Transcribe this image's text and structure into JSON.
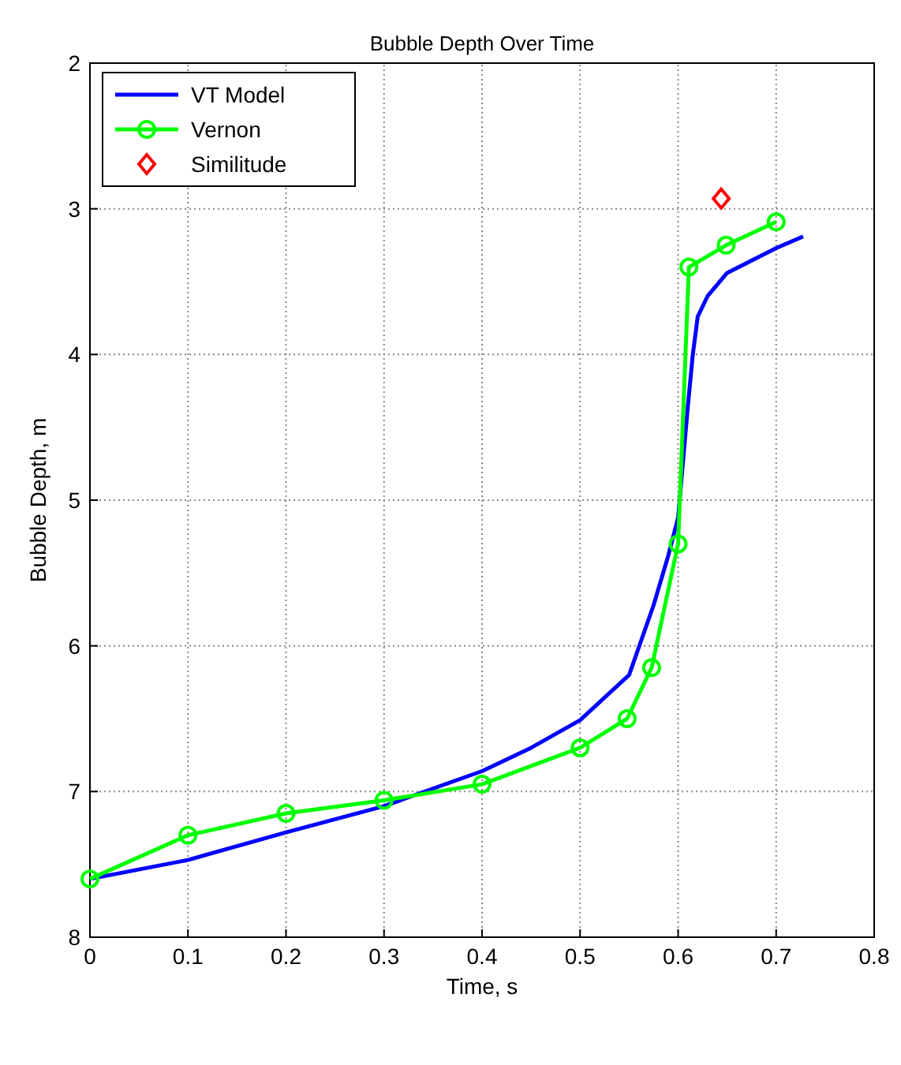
{
  "chart_data": {
    "type": "line",
    "title": "Bubble Depth Over Time",
    "xlabel": "Time, s",
    "ylabel": "Bubble Depth, m",
    "xlim": [
      0,
      0.8
    ],
    "ylim": [
      8,
      2
    ],
    "xticks": [
      0,
      0.1,
      0.2,
      0.3,
      0.4,
      0.5,
      0.6,
      0.7,
      0.8
    ],
    "yticks": [
      2,
      3,
      4,
      5,
      6,
      7,
      8
    ],
    "grid": true,
    "legend": "top left",
    "series": [
      {
        "name": "VT Model",
        "color": "#0000ff",
        "marker": "none",
        "x": [
          0,
          0.1,
          0.2,
          0.3,
          0.4,
          0.45,
          0.5,
          0.55,
          0.575,
          0.59,
          0.6,
          0.61,
          0.615,
          0.62,
          0.63,
          0.65,
          0.7,
          0.7275
        ],
        "values": [
          7.6,
          7.47,
          7.28,
          7.1,
          6.86,
          6.7,
          6.51,
          6.2,
          5.72,
          5.38,
          5.12,
          4.35,
          4.0,
          3.74,
          3.6,
          3.44,
          3.27,
          3.19
        ]
      },
      {
        "name": "Vernon",
        "color": "#00ff00",
        "marker": "circle",
        "x": [
          0,
          0.1,
          0.2,
          0.3,
          0.4,
          0.5,
          0.548,
          0.573,
          0.6,
          0.611,
          0.649,
          0.7
        ],
        "values": [
          7.6,
          7.3,
          7.15,
          7.06,
          6.95,
          6.7,
          6.5,
          6.15,
          5.3,
          3.4,
          3.25,
          3.09
        ]
      },
      {
        "name": "Similitude",
        "type": "scatter",
        "color": "#ff0000",
        "marker": "diamond",
        "x": [
          0.644
        ],
        "values": [
          2.93
        ]
      }
    ]
  }
}
